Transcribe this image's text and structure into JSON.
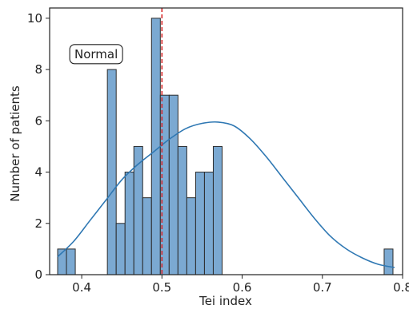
{
  "chart_data": {
    "type": "bar",
    "subtype": "histogram",
    "xlabel": "Tei index",
    "ylabel": "Number of patients",
    "xlim": [
      0.36,
      0.8
    ],
    "ylim": [
      0,
      10.4
    ],
    "x_ticks": [
      {
        "value": 0.4,
        "label": "0.4"
      },
      {
        "value": 0.5,
        "label": "0.5"
      },
      {
        "value": 0.6,
        "label": "0.6"
      },
      {
        "value": 0.7,
        "label": "0.7"
      },
      {
        "value": 0.8,
        "label": "0.8"
      }
    ],
    "y_ticks": [
      {
        "value": 0,
        "label": "0"
      },
      {
        "value": 2,
        "label": "2"
      },
      {
        "value": 4,
        "label": "4"
      },
      {
        "value": 6,
        "label": "6"
      },
      {
        "value": 8,
        "label": "8"
      },
      {
        "value": 10,
        "label": "10"
      }
    ],
    "bins": [
      {
        "x0": 0.37,
        "x1": 0.381,
        "count": 1
      },
      {
        "x0": 0.381,
        "x1": 0.392,
        "count": 1
      },
      {
        "x0": 0.432,
        "x1": 0.443,
        "count": 8
      },
      {
        "x0": 0.443,
        "x1": 0.454,
        "count": 2
      },
      {
        "x0": 0.454,
        "x1": 0.465,
        "count": 4
      },
      {
        "x0": 0.465,
        "x1": 0.476,
        "count": 5
      },
      {
        "x0": 0.476,
        "x1": 0.487,
        "count": 3
      },
      {
        "x0": 0.487,
        "x1": 0.498,
        "count": 10
      },
      {
        "x0": 0.498,
        "x1": 0.509,
        "count": 7
      },
      {
        "x0": 0.509,
        "x1": 0.52,
        "count": 7
      },
      {
        "x0": 0.52,
        "x1": 0.531,
        "count": 5
      },
      {
        "x0": 0.531,
        "x1": 0.542,
        "count": 3
      },
      {
        "x0": 0.542,
        "x1": 0.553,
        "count": 4
      },
      {
        "x0": 0.553,
        "x1": 0.564,
        "count": 4
      },
      {
        "x0": 0.564,
        "x1": 0.575,
        "count": 5
      },
      {
        "x0": 0.777,
        "x1": 0.788,
        "count": 1
      }
    ],
    "kde_curve": [
      [
        0.37,
        0.7
      ],
      [
        0.39,
        1.3
      ],
      [
        0.41,
        2.1
      ],
      [
        0.43,
        2.9
      ],
      [
        0.45,
        3.7
      ],
      [
        0.47,
        4.3
      ],
      [
        0.49,
        4.8
      ],
      [
        0.51,
        5.3
      ],
      [
        0.53,
        5.7
      ],
      [
        0.55,
        5.9
      ],
      [
        0.57,
        5.95
      ],
      [
        0.59,
        5.8
      ],
      [
        0.61,
        5.3
      ],
      [
        0.63,
        4.6
      ],
      [
        0.65,
        3.8
      ],
      [
        0.67,
        3.0
      ],
      [
        0.69,
        2.2
      ],
      [
        0.71,
        1.5
      ],
      [
        0.73,
        1.0
      ],
      [
        0.75,
        0.65
      ],
      [
        0.77,
        0.4
      ],
      [
        0.79,
        0.28
      ]
    ],
    "reference_line": {
      "x": 0.5,
      "color": "#d62728",
      "style": "dashed"
    },
    "annotation": {
      "text": "Normal",
      "x": 0.418,
      "y": 8.6
    },
    "grid": false,
    "colors": {
      "bar_fill": "#7ba9d2",
      "bar_edge": "#2b2b2b",
      "kde_line": "#2f78b3"
    }
  }
}
